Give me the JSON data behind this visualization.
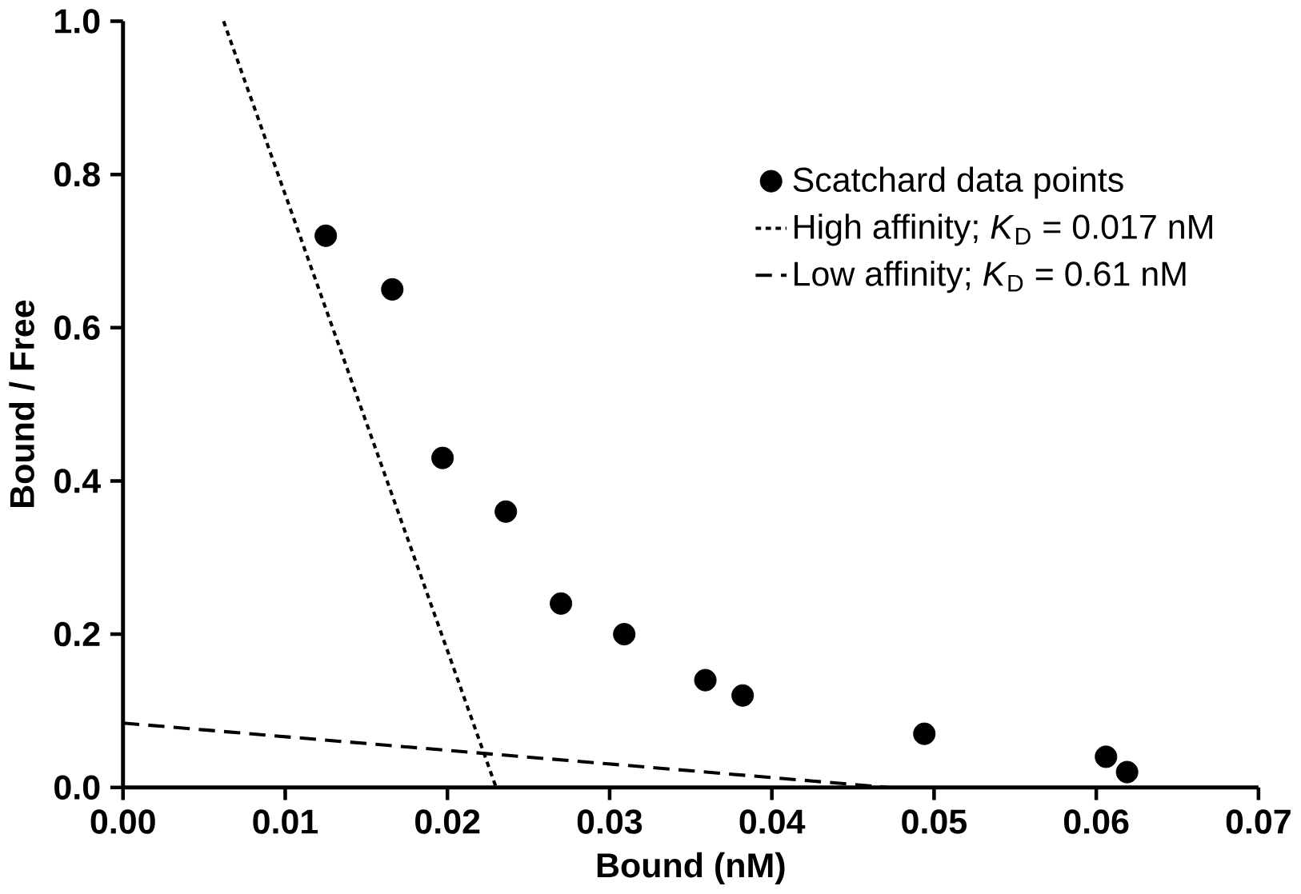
{
  "chart_data": {
    "type": "scatter",
    "xlabel": "Bound (nM)",
    "ylabel": "Bound / Free",
    "xlim": [
      0,
      0.07
    ],
    "ylim": [
      0,
      1.0
    ],
    "xticks": [
      {
        "value": 0,
        "label": "0.00"
      },
      0.01,
      0.02,
      0.03,
      0.04,
      0.05,
      0.06,
      0.07
    ],
    "yticks": [
      {
        "value": 0,
        "label": "0.0"
      },
      0.2,
      0.4,
      0.6,
      0.8,
      {
        "value": 1,
        "label": "1.0"
      }
    ],
    "grid": false,
    "legend": "right",
    "series": [
      {
        "name": "Scatchard data points",
        "color": "#000000",
        "marker": "circle",
        "x": [
          0.0125,
          0.0166,
          0.0197,
          0.0236,
          0.027,
          0.0309,
          0.0359,
          0.0382,
          0.0494,
          0.0606,
          0.0619
        ],
        "values": [
          0.72,
          0.65,
          0.43,
          0.36,
          0.24,
          0.2,
          0.14,
          0.12,
          0.07,
          0.04,
          0.02
        ]
      },
      {
        "name": "High affinity; *K*$_{D}$ = 0.017 nM",
        "type": "line",
        "color": "#000000",
        "marker": "none",
        "line_style": "dotted",
        "x": [
          0.0062,
          0.023
        ],
        "values": [
          1.0,
          0
        ]
      },
      {
        "name": "Low affinity; *K*$_{D}$ = 0.61 nM",
        "type": "line",
        "color": "#000000",
        "marker": "none",
        "line_style": "dashed",
        "x": [
          0,
          0.0472
        ],
        "values": [
          0.084,
          0
        ]
      }
    ]
  }
}
